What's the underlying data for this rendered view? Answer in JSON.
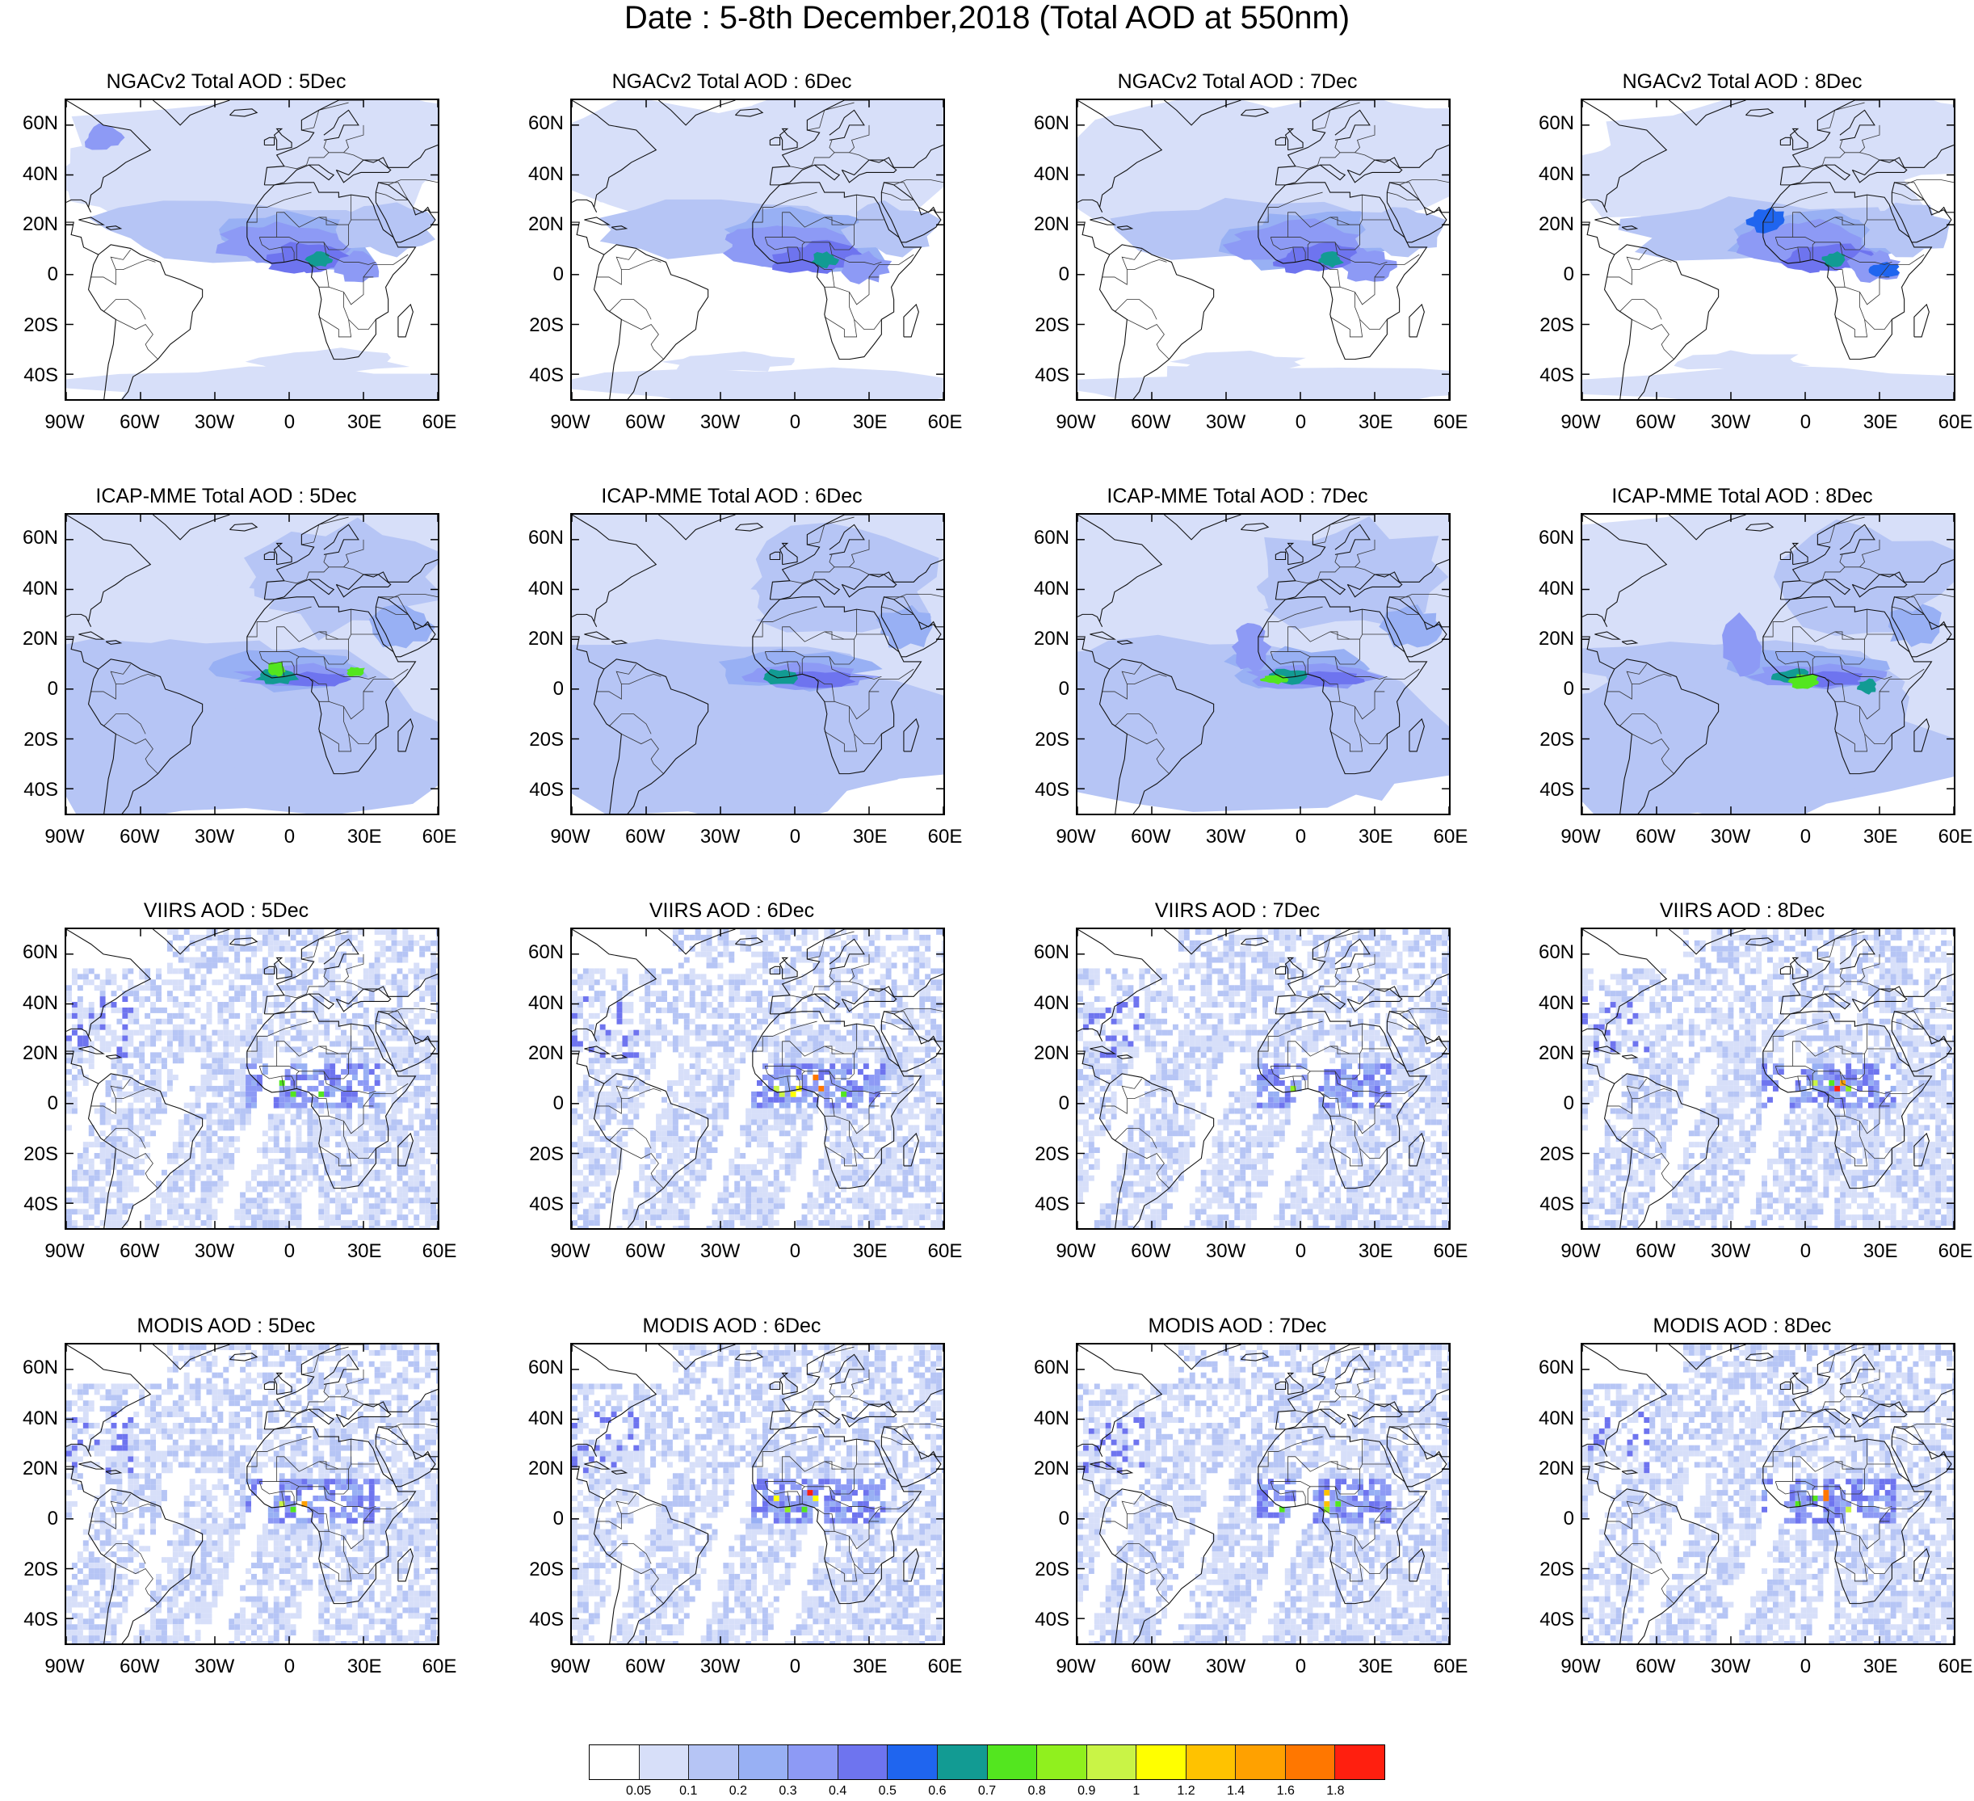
{
  "title": "Date : 5-8th December,2018 (Total AOD at 550nm)",
  "axes": {
    "lon_ticks": [
      "90W",
      "60W",
      "30W",
      "0",
      "30E",
      "60E"
    ],
    "lat_ticks": [
      "60N",
      "40N",
      "20N",
      "0",
      "20S",
      "40S"
    ],
    "lon_range": [
      -90,
      60
    ],
    "lat_range": [
      -50,
      70
    ],
    "lon_values": [
      -90,
      -60,
      -30,
      0,
      30,
      60
    ],
    "lat_values": [
      60,
      40,
      20,
      0,
      -20,
      -40
    ]
  },
  "colorbar": {
    "colors": [
      "#ffffff",
      "#d7dff9",
      "#b6c5f5",
      "#98b0f4",
      "#8d9af5",
      "#6e74ef",
      "#1f65ef",
      "#129b93",
      "#53e61f",
      "#90f01e",
      "#c9f446",
      "#ffff00",
      "#ffc200",
      "#ffa100",
      "#ff7700",
      "#ff1f0f"
    ],
    "labels": [
      "0.05",
      "0.1",
      "0.2",
      "0.3",
      "0.4",
      "0.5",
      "0.6",
      "0.7",
      "0.8",
      "0.9",
      "1",
      "1.2",
      "1.4",
      "1.6",
      "1.8"
    ]
  },
  "rows": [
    {
      "product": "NGACv2",
      "style": "smooth",
      "panels": [
        {
          "title": "NGACv2 Total AOD : 5Dec"
        },
        {
          "title": "NGACv2 Total AOD : 6Dec"
        },
        {
          "title": "NGACv2 Total AOD : 7Dec"
        },
        {
          "title": "NGACv2 Total AOD : 8Dec"
        }
      ]
    },
    {
      "product": "ICAP-MME",
      "style": "dense",
      "panels": [
        {
          "title": "ICAP-MME Total AOD : 5Dec"
        },
        {
          "title": "ICAP-MME Total AOD : 6Dec"
        },
        {
          "title": "ICAP-MME Total AOD : 7Dec"
        },
        {
          "title": "ICAP-MME Total AOD : 8Dec"
        }
      ]
    },
    {
      "product": "VIIRS",
      "style": "swath",
      "panels": [
        {
          "title": "VIIRS AOD : 5Dec"
        },
        {
          "title": "VIIRS AOD : 6Dec"
        },
        {
          "title": "VIIRS AOD : 7Dec"
        },
        {
          "title": "VIIRS AOD : 8Dec"
        }
      ]
    },
    {
      "product": "MODIS",
      "style": "swath",
      "panels": [
        {
          "title": "MODIS AOD : 5Dec"
        },
        {
          "title": "MODIS AOD : 6Dec"
        },
        {
          "title": "MODIS AOD : 7Dec"
        },
        {
          "title": "MODIS AOD : 8Dec"
        }
      ]
    }
  ]
}
